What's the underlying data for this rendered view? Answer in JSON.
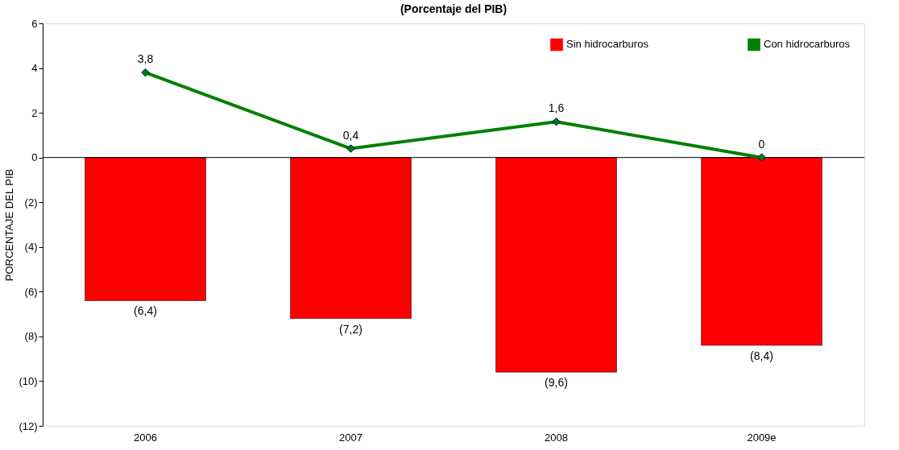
{
  "chart_data": {
    "type": "bar",
    "title": "(Porcentaje del PIB)",
    "ylabel": "PORCENTAJE DEL PIB",
    "categories": [
      "2006",
      "2007",
      "2008",
      "2009e"
    ],
    "series": [
      {
        "name": "Sin hidrocarburos",
        "color": "#ff0000",
        "values": [
          -6.4,
          -7.2,
          -9.6,
          -8.4
        ],
        "value_labels": [
          "(6,4)",
          "(7,2)",
          "(9,6)",
          "(8,4)"
        ]
      },
      {
        "name": "Con hidrocarburos",
        "type": "line",
        "color": "#008000",
        "values": [
          3.8,
          0.4,
          1.6,
          0
        ],
        "value_labels": [
          "3,8",
          "0,4",
          "1,6",
          "0"
        ]
      }
    ],
    "ylim": [
      -12,
      6
    ],
    "yticks": [
      {
        "value": -12,
        "label": "(12)"
      },
      {
        "value": -10,
        "label": "(10)"
      },
      {
        "value": -8,
        "label": "(8)"
      },
      {
        "value": -6,
        "label": "(6)"
      },
      {
        "value": -4,
        "label": "(4)"
      },
      {
        "value": -2,
        "label": "(2)"
      },
      0,
      2,
      4,
      6
    ],
    "marker": "diamond",
    "line_style": "solid",
    "legend": "top right"
  }
}
